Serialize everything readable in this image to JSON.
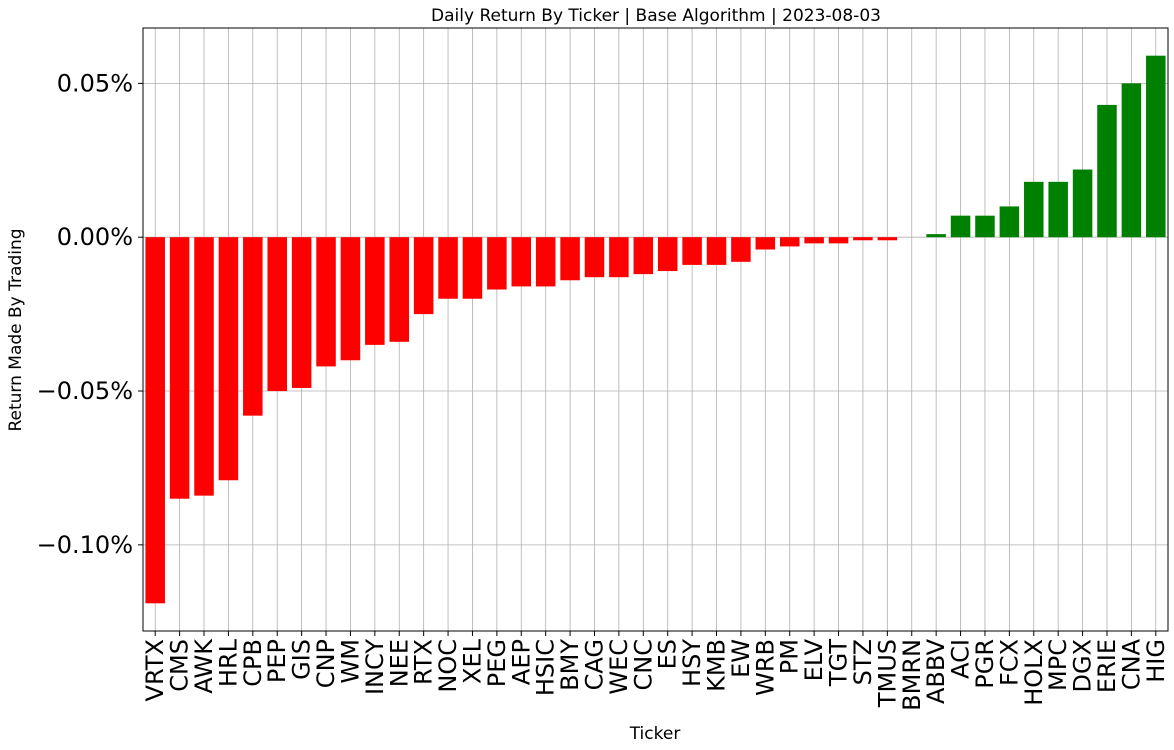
{
  "chart_data": {
    "type": "bar",
    "title": "Daily Return By Ticker | Base Algorithm | 2023-08-03",
    "xlabel": "Ticker",
    "ylabel": "Return Made By Trading",
    "categories": [
      "VRTX",
      "CMS",
      "AWK",
      "HRL",
      "CPB",
      "PEP",
      "GIS",
      "CNP",
      "WM",
      "INCY",
      "NEE",
      "RTX",
      "NOC",
      "XEL",
      "PEG",
      "AEP",
      "HSIC",
      "BMY",
      "CAG",
      "WEC",
      "CNC",
      "ES",
      "HSY",
      "KMB",
      "EW",
      "WRB",
      "PM",
      "ELV",
      "TGT",
      "STZ",
      "TMUS",
      "BMRN",
      "ABBV",
      "ACI",
      "PGR",
      "FCX",
      "HOLX",
      "MPC",
      "DGX",
      "ERIE",
      "CNA",
      "HIG"
    ],
    "values": [
      -0.119,
      -0.085,
      -0.084,
      -0.079,
      -0.058,
      -0.05,
      -0.049,
      -0.042,
      -0.04,
      -0.035,
      -0.034,
      -0.025,
      -0.02,
      -0.02,
      -0.017,
      -0.016,
      -0.016,
      -0.014,
      -0.013,
      -0.013,
      -0.012,
      -0.011,
      -0.009,
      -0.009,
      -0.008,
      -0.004,
      -0.003,
      -0.002,
      -0.002,
      -0.001,
      -0.001,
      0.0,
      0.001,
      0.007,
      0.007,
      0.01,
      0.018,
      0.018,
      0.022,
      0.043,
      0.05,
      0.059
    ],
    "value_unit": "%",
    "ylim": [
      -0.128,
      0.068
    ],
    "yticks": [
      -0.1,
      -0.05,
      0.0,
      0.05
    ],
    "ytick_labels": [
      "−0.10%",
      "−0.05%",
      "0.00%",
      "0.05%"
    ],
    "colors": {
      "negative": "#ff0000",
      "positive": "#008000"
    },
    "grid": true
  }
}
